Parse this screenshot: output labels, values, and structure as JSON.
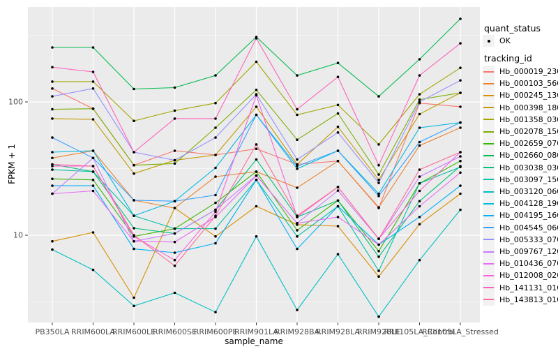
{
  "colors": {
    "panel_bg": "#ebebeb",
    "grid": "#ffffff",
    "tick_mark": "#333333",
    "tick_label": "#4d4d4d",
    "point": "#000000",
    "legend_key_bg": "#f2f2f2"
  },
  "chart_data": {
    "type": "line",
    "xlabel": "sample_name",
    "ylabel": "FPKM + 1",
    "y_scale": "log10",
    "y_ticks": [
      10,
      100
    ],
    "y_minor_gridlines": [
      3.162,
      31.62,
      316.2
    ],
    "ylim": [
      2.22,
      515
    ],
    "grid": true,
    "legend_position": "right",
    "legend": {
      "quant_status_title": "quant_status",
      "quant_status_items": [
        "OK"
      ],
      "tracking_id_title": "tracking_id"
    },
    "categories": [
      "PB350LA",
      "RRIM600LA",
      "RRIM600LE",
      "RRIM600SE",
      "RRIM600PE",
      "RRIM901LA",
      "RRIM928BA",
      "RRIM928LA",
      "RRIM928LE",
      "RRII105LA_Control",
      "RRII105LA_Stressed"
    ],
    "series": [
      {
        "name": "Hb_000019_230",
        "color": "#F8766D",
        "values": [
          126,
          89,
          33.5,
          43,
          40,
          44.5,
          34,
          36,
          16,
          98,
          92
        ]
      },
      {
        "name": "Hb_000103_560",
        "color": "#EA8331",
        "values": [
          38,
          43,
          18.3,
          16,
          27.5,
          30,
          22.7,
          36,
          16.2,
          47,
          64
        ]
      },
      {
        "name": "Hb_000245_130",
        "color": "#D89000",
        "values": [
          9,
          10.5,
          3.4,
          16,
          9.8,
          16.5,
          12,
          11.7,
          4.9,
          12.1,
          20.5
        ]
      },
      {
        "name": "Hb_000398_180",
        "color": "#C09B00",
        "values": [
          75,
          74,
          29,
          36.5,
          40,
          92,
          34,
          65,
          26,
          81,
          117
        ]
      },
      {
        "name": "Hb_001358_030",
        "color": "#A3A500",
        "values": [
          142,
          142,
          72,
          86,
          98,
          200,
          80,
          95,
          48,
          114,
          180
        ]
      },
      {
        "name": "Hb_002078_150",
        "color": "#7CAE00",
        "values": [
          88,
          89,
          33.5,
          34.5,
          64,
          123,
          52,
          82,
          28.5,
          104,
          117
        ]
      },
      {
        "name": "Hb_002659_070",
        "color": "#39B600",
        "values": [
          26.5,
          26,
          9.8,
          11.2,
          17.5,
          30,
          10.9,
          18.2,
          7.6,
          24.5,
          36
        ]
      },
      {
        "name": "Hb_002660_080",
        "color": "#00BB4E",
        "values": [
          256,
          256,
          125,
          128,
          158,
          307,
          158,
          196,
          110,
          209,
          420
        ]
      },
      {
        "name": "Hb_003038_030",
        "color": "#00BF7D",
        "values": [
          34,
          30,
          11.3,
          10.3,
          15.5,
          37,
          13.7,
          18.2,
          6.9,
          18,
          33
        ]
      },
      {
        "name": "Hb_003097_150",
        "color": "#00C1A3",
        "values": [
          31,
          30,
          14,
          11.2,
          11.2,
          26,
          9.8,
          16.5,
          5.4,
          24.5,
          32.5
        ]
      },
      {
        "name": "Hb_003120_060",
        "color": "#00BFC4",
        "values": [
          7.8,
          5.5,
          2.95,
          3.7,
          2.65,
          9.8,
          2.75,
          7.2,
          2.45,
          6.5,
          15.5
        ]
      },
      {
        "name": "Hb_004128_190",
        "color": "#00BAE0",
        "values": [
          42,
          43,
          14,
          18,
          32,
          80,
          31.5,
          43,
          20.5,
          64,
          70
        ]
      },
      {
        "name": "Hb_004195_160",
        "color": "#00B0F6",
        "values": [
          23.5,
          23.5,
          7.9,
          7.4,
          8.7,
          26,
          7.9,
          16.5,
          8.5,
          13.7,
          23.5
        ]
      },
      {
        "name": "Hb_004545_060",
        "color": "#35A2FF",
        "values": [
          54,
          38,
          18.3,
          18,
          20,
          80,
          33,
          43,
          19.7,
          50,
          70
        ]
      },
      {
        "name": "Hb_005333_070",
        "color": "#9590FF",
        "values": [
          110,
          126,
          42,
          36.5,
          54,
          114,
          37,
          59,
          24.7,
          100,
          145
        ]
      },
      {
        "name": "Hb_009767_120",
        "color": "#C77CFF",
        "values": [
          20.5,
          38,
          9,
          10.3,
          15.5,
          28,
          12.3,
          21.6,
          9.4,
          27.5,
          39
        ]
      },
      {
        "name": "Hb_010436_070",
        "color": "#E76BF3",
        "values": [
          20.5,
          21.5,
          9,
          8.9,
          13.7,
          28,
          12.3,
          13.7,
          8.5,
          16.5,
          29.5
        ]
      },
      {
        "name": "Hb_012008_020",
        "color": "#FA62DB",
        "values": [
          33,
          33,
          9.8,
          6.5,
          15,
          112,
          13.7,
          23,
          9.4,
          21.5,
          42
        ]
      },
      {
        "name": "Hb_141131_010",
        "color": "#FF62BC",
        "values": [
          182,
          168,
          42,
          75,
          75,
          300,
          88,
          154,
          33.5,
          158,
          275
        ]
      },
      {
        "name": "Hb_143813_010",
        "color": "#FF6A98",
        "values": [
          34,
          33,
          10,
          5.9,
          14,
          48,
          14,
          23,
          9.4,
          31,
          42
        ]
      }
    ]
  }
}
